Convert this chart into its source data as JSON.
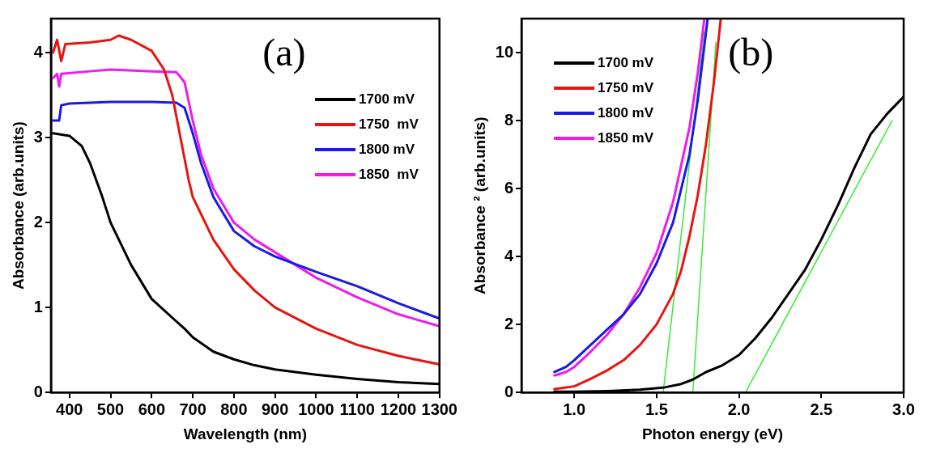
{
  "chart_data": [
    {
      "type": "line",
      "xlabel": "Wavelength (nm)",
      "ylabel": "Absorbance (arb.units)",
      "annotations": [
        "(a)"
      ],
      "xlim": [
        355,
        1300
      ],
      "ylim": [
        0,
        4.4
      ],
      "xticks": [
        400,
        500,
        600,
        700,
        800,
        900,
        1000,
        1100,
        1200,
        1300
      ],
      "yticks": [
        0,
        1,
        2,
        3,
        4
      ],
      "grid": false,
      "legend": "top right",
      "line_style": "solid",
      "marker": "none",
      "series": [
        {
          "name": "1700 mV",
          "color": "#000000",
          "x": [
            360,
            400,
            430,
            450,
            480,
            500,
            550,
            600,
            650,
            680,
            700,
            750,
            800,
            850,
            900,
            1000,
            1100,
            1200,
            1300
          ],
          "values": [
            3.05,
            3.02,
            2.9,
            2.7,
            2.3,
            2.0,
            1.5,
            1.1,
            0.88,
            0.75,
            0.65,
            0.48,
            0.39,
            0.32,
            0.27,
            0.21,
            0.16,
            0.12,
            0.1
          ]
        },
        {
          "name": "1750  mV",
          "color": "#e8140f",
          "x": [
            360,
            370,
            380,
            390,
            450,
            500,
            520,
            550,
            600,
            630,
            650,
            670,
            690,
            700,
            750,
            800,
            850,
            900,
            1000,
            1100,
            1200,
            1300
          ],
          "values": [
            4.0,
            4.15,
            3.9,
            4.1,
            4.12,
            4.15,
            4.2,
            4.15,
            4.02,
            3.8,
            3.5,
            3.0,
            2.5,
            2.3,
            1.8,
            1.45,
            1.2,
            1.0,
            0.75,
            0.56,
            0.43,
            0.33
          ]
        },
        {
          "name": "1800 mV",
          "color": "#1a1ae6",
          "x": [
            360,
            375,
            380,
            400,
            500,
            600,
            660,
            680,
            700,
            720,
            750,
            800,
            850,
            900,
            1000,
            1100,
            1200,
            1300
          ],
          "values": [
            3.2,
            3.2,
            3.38,
            3.4,
            3.42,
            3.42,
            3.41,
            3.35,
            3.05,
            2.7,
            2.3,
            1.9,
            1.72,
            1.6,
            1.42,
            1.25,
            1.05,
            0.87
          ]
        },
        {
          "name": "1850  mV",
          "color": "#ee1aee",
          "x": [
            360,
            370,
            375,
            380,
            450,
            500,
            600,
            660,
            680,
            700,
            720,
            750,
            800,
            850,
            900,
            950,
            1000,
            1100,
            1200,
            1300
          ],
          "values": [
            3.7,
            3.75,
            3.6,
            3.75,
            3.78,
            3.8,
            3.78,
            3.77,
            3.65,
            3.2,
            2.8,
            2.4,
            2.0,
            1.8,
            1.65,
            1.5,
            1.35,
            1.12,
            0.92,
            0.78
          ]
        }
      ]
    },
    {
      "type": "line",
      "xlabel": "Photon energy (eV)",
      "ylabel": "Absorbance ² (arb.units)",
      "annotations": [
        "(b)"
      ],
      "xlim": [
        0.68,
        3.0
      ],
      "ylim": [
        0,
        11
      ],
      "xticks": [
        {
          "value": 1,
          "label": "1.0"
        },
        1.5,
        {
          "value": 2,
          "label": "2.0"
        },
        2.5,
        {
          "value": 3,
          "label": "3.0"
        }
      ],
      "yticks": [
        0,
        2,
        4,
        6,
        8,
        10
      ],
      "grid": false,
      "legend": "top left",
      "line_style": "solid",
      "marker": "none",
      "series": [
        {
          "name": "1700 mV",
          "color": "#000000",
          "x": [
            0.88,
            1.0,
            1.2,
            1.4,
            1.55,
            1.65,
            1.72,
            1.8,
            1.9,
            2.0,
            2.1,
            2.2,
            2.3,
            2.4,
            2.5,
            2.6,
            2.7,
            2.8,
            2.9,
            3.0
          ],
          "values": [
            0.02,
            0.02,
            0.04,
            0.08,
            0.15,
            0.25,
            0.38,
            0.6,
            0.8,
            1.1,
            1.6,
            2.2,
            2.9,
            3.6,
            4.5,
            5.5,
            6.6,
            7.6,
            8.2,
            8.7
          ]
        },
        {
          "name": "1750 mV",
          "color": "#e8140f",
          "x": [
            0.88,
            1.0,
            1.1,
            1.2,
            1.3,
            1.4,
            1.5,
            1.6,
            1.65,
            1.7,
            1.75,
            1.8,
            1.85,
            1.89
          ],
          "values": [
            0.1,
            0.18,
            0.4,
            0.65,
            0.95,
            1.4,
            2.0,
            2.9,
            3.6,
            4.6,
            5.8,
            7.3,
            9.2,
            11
          ]
        },
        {
          "name": "1800 mV",
          "color": "#1a1ae6",
          "x": [
            0.88,
            0.95,
            1.0,
            1.1,
            1.2,
            1.3,
            1.4,
            1.5,
            1.6,
            1.7,
            1.75,
            1.81
          ],
          "values": [
            0.6,
            0.75,
            0.95,
            1.4,
            1.85,
            2.3,
            2.9,
            3.8,
            5.0,
            7.0,
            8.6,
            11
          ]
        },
        {
          "name": "1850 mV",
          "color": "#ee1aee",
          "x": [
            0.88,
            0.95,
            1.0,
            1.1,
            1.2,
            1.3,
            1.4,
            1.5,
            1.6,
            1.7,
            1.75,
            1.79
          ],
          "values": [
            0.5,
            0.6,
            0.75,
            1.2,
            1.7,
            2.3,
            3.1,
            4.1,
            5.6,
            7.8,
            9.4,
            11
          ]
        },
        {
          "type": "line",
          "color": "#33ee33",
          "x": [
            1.79,
            1.54
          ],
          "values": [
            10.6,
            0
          ]
        },
        {
          "type": "line",
          "color": "#33ee33",
          "x": [
            1.86,
            1.72
          ],
          "values": [
            10.3,
            0
          ]
        },
        {
          "type": "line",
          "color": "#33ee33",
          "x": [
            2.93,
            2.04
          ],
          "values": [
            8.0,
            0
          ]
        }
      ]
    }
  ]
}
